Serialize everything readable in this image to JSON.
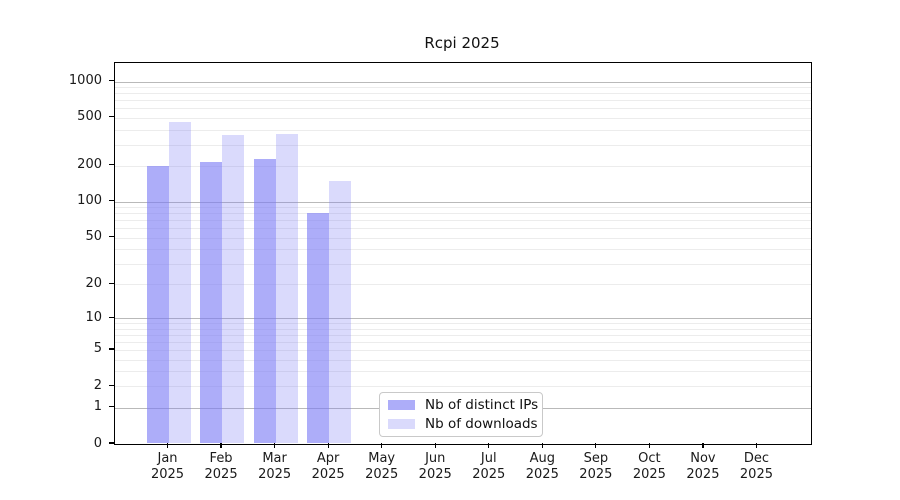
{
  "chart_data": {
    "type": "bar",
    "title": "Rcpi 2025",
    "scale": "log10(1+x)",
    "grid": "horizontal, log major + minor",
    "legend_position": "lower center",
    "x_year": "2025",
    "x_categories": [
      "Jan",
      "Feb",
      "Mar",
      "Apr",
      "May",
      "Jun",
      "Jul",
      "Aug",
      "Sep",
      "Oct",
      "Nov",
      "Dec"
    ],
    "y_ticks": [
      0,
      1,
      2,
      5,
      10,
      20,
      50,
      100,
      200,
      500,
      1000
    ],
    "ylim": [
      0,
      1425
    ],
    "series": [
      {
        "key": "distinct-ips",
        "name": "Nb of distinct IPs",
        "fill": "rgba(122,122,246,0.62)",
        "color_on_white": "#adadf9",
        "values": [
          200,
          215,
          228,
          81,
          0,
          0,
          0,
          0,
          0,
          0,
          0,
          0
        ]
      },
      {
        "key": "downloads",
        "name": "Nb of downloads",
        "fill": "rgba(122,122,246,0.28)",
        "color_on_white": "#dcdcfb",
        "values": [
          460,
          360,
          370,
          149,
          0,
          0,
          0,
          0,
          0,
          0,
          0,
          0
        ]
      }
    ]
  },
  "colors": {
    "background": "#ffffff",
    "spine": "#000000",
    "major_grid": "#b9b9b9",
    "minor_grid": "#ececec",
    "tick_text": "#1a1a1a",
    "legend_border": "#c9c9c9"
  }
}
